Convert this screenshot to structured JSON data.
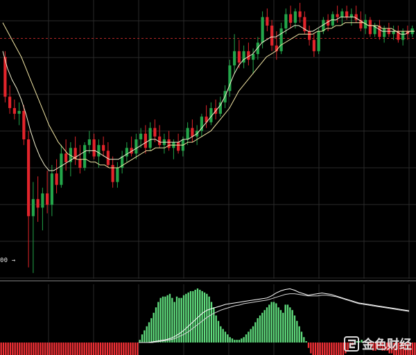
{
  "chart_data": {
    "type": "candlestick",
    "title": "",
    "xlabel": "",
    "ylabel": "",
    "grid": true,
    "price_panel": {
      "ylim": [
        0,
        100
      ],
      "reference_line": 92.5,
      "low_label": "00 →",
      "candles": [
        {
          "o": 86,
          "h": 88,
          "l": 70,
          "c": 72
        },
        {
          "o": 72,
          "h": 76,
          "l": 66,
          "c": 68
        },
        {
          "o": 68,
          "h": 71,
          "l": 64,
          "c": 66
        },
        {
          "o": 66,
          "h": 70,
          "l": 62,
          "c": 67
        },
        {
          "o": 67,
          "h": 69,
          "l": 55,
          "c": 57
        },
        {
          "o": 57,
          "h": 60,
          "l": 12,
          "c": 30
        },
        {
          "o": 30,
          "h": 42,
          "l": 10,
          "c": 36
        },
        {
          "o": 36,
          "h": 44,
          "l": 28,
          "c": 33
        },
        {
          "o": 33,
          "h": 40,
          "l": 25,
          "c": 38
        },
        {
          "o": 38,
          "h": 46,
          "l": 31,
          "c": 34
        },
        {
          "o": 34,
          "h": 48,
          "l": 30,
          "c": 45
        },
        {
          "o": 45,
          "h": 50,
          "l": 38,
          "c": 41
        },
        {
          "o": 41,
          "h": 55,
          "l": 40,
          "c": 52
        },
        {
          "o": 52,
          "h": 57,
          "l": 46,
          "c": 49
        },
        {
          "o": 49,
          "h": 56,
          "l": 44,
          "c": 54
        },
        {
          "o": 54,
          "h": 58,
          "l": 48,
          "c": 50
        },
        {
          "o": 50,
          "h": 55,
          "l": 45,
          "c": 47
        },
        {
          "o": 47,
          "h": 56,
          "l": 46,
          "c": 55
        },
        {
          "o": 55,
          "h": 60,
          "l": 52,
          "c": 57
        },
        {
          "o": 57,
          "h": 59,
          "l": 50,
          "c": 51
        },
        {
          "o": 51,
          "h": 57,
          "l": 47,
          "c": 55
        },
        {
          "o": 55,
          "h": 58,
          "l": 51,
          "c": 53
        },
        {
          "o": 53,
          "h": 56,
          "l": 47,
          "c": 48
        },
        {
          "o": 48,
          "h": 51,
          "l": 40,
          "c": 42
        },
        {
          "o": 42,
          "h": 49,
          "l": 40,
          "c": 47
        },
        {
          "o": 47,
          "h": 53,
          "l": 45,
          "c": 51
        },
        {
          "o": 51,
          "h": 56,
          "l": 49,
          "c": 54
        },
        {
          "o": 54,
          "h": 58,
          "l": 51,
          "c": 52
        },
        {
          "o": 52,
          "h": 59,
          "l": 50,
          "c": 57
        },
        {
          "o": 57,
          "h": 61,
          "l": 54,
          "c": 59
        },
        {
          "o": 59,
          "h": 62,
          "l": 52,
          "c": 54
        },
        {
          "o": 54,
          "h": 63,
          "l": 53,
          "c": 61
        },
        {
          "o": 61,
          "h": 64,
          "l": 56,
          "c": 58
        },
        {
          "o": 58,
          "h": 62,
          "l": 54,
          "c": 55
        },
        {
          "o": 55,
          "h": 59,
          "l": 52,
          "c": 57
        },
        {
          "o": 57,
          "h": 60,
          "l": 53,
          "c": 54
        },
        {
          "o": 54,
          "h": 57,
          "l": 50,
          "c": 56
        },
        {
          "o": 56,
          "h": 59,
          "l": 52,
          "c": 53
        },
        {
          "o": 53,
          "h": 58,
          "l": 51,
          "c": 57
        },
        {
          "o": 57,
          "h": 63,
          "l": 55,
          "c": 61
        },
        {
          "o": 61,
          "h": 64,
          "l": 56,
          "c": 58
        },
        {
          "o": 58,
          "h": 62,
          "l": 55,
          "c": 60
        },
        {
          "o": 60,
          "h": 66,
          "l": 58,
          "c": 65
        },
        {
          "o": 65,
          "h": 69,
          "l": 61,
          "c": 63
        },
        {
          "o": 63,
          "h": 70,
          "l": 62,
          "c": 68
        },
        {
          "o": 68,
          "h": 71,
          "l": 64,
          "c": 66
        },
        {
          "o": 66,
          "h": 72,
          "l": 65,
          "c": 70
        },
        {
          "o": 70,
          "h": 76,
          "l": 68,
          "c": 74
        },
        {
          "o": 74,
          "h": 85,
          "l": 72,
          "c": 83
        },
        {
          "o": 83,
          "h": 94,
          "l": 80,
          "c": 88
        },
        {
          "o": 88,
          "h": 92,
          "l": 82,
          "c": 84
        },
        {
          "o": 84,
          "h": 90,
          "l": 82,
          "c": 88
        },
        {
          "o": 88,
          "h": 91,
          "l": 83,
          "c": 85
        },
        {
          "o": 85,
          "h": 89,
          "l": 80,
          "c": 87
        },
        {
          "o": 87,
          "h": 93,
          "l": 85,
          "c": 91
        },
        {
          "o": 91,
          "h": 102,
          "l": 89,
          "c": 100
        },
        {
          "o": 100,
          "h": 103,
          "l": 95,
          "c": 97
        },
        {
          "o": 97,
          "h": 99,
          "l": 88,
          "c": 90
        },
        {
          "o": 90,
          "h": 95,
          "l": 85,
          "c": 88
        },
        {
          "o": 88,
          "h": 98,
          "l": 87,
          "c": 96
        },
        {
          "o": 96,
          "h": 103,
          "l": 94,
          "c": 101
        },
        {
          "o": 101,
          "h": 104,
          "l": 96,
          "c": 98
        },
        {
          "o": 98,
          "h": 103,
          "l": 96,
          "c": 102
        },
        {
          "o": 102,
          "h": 105,
          "l": 98,
          "c": 100
        },
        {
          "o": 100,
          "h": 102,
          "l": 94,
          "c": 95
        },
        {
          "o": 95,
          "h": 97,
          "l": 90,
          "c": 92
        },
        {
          "o": 92,
          "h": 94,
          "l": 86,
          "c": 88
        },
        {
          "o": 88,
          "h": 96,
          "l": 87,
          "c": 95
        },
        {
          "o": 95,
          "h": 100,
          "l": 94,
          "c": 99
        },
        {
          "o": 99,
          "h": 101,
          "l": 95,
          "c": 97
        },
        {
          "o": 97,
          "h": 102,
          "l": 96,
          "c": 101
        },
        {
          "o": 101,
          "h": 104,
          "l": 98,
          "c": 100
        },
        {
          "o": 100,
          "h": 103,
          "l": 97,
          "c": 102
        },
        {
          "o": 102,
          "h": 104,
          "l": 99,
          "c": 100
        },
        {
          "o": 100,
          "h": 103,
          "l": 97,
          "c": 101
        },
        {
          "o": 101,
          "h": 104,
          "l": 98,
          "c": 99
        },
        {
          "o": 99,
          "h": 102,
          "l": 95,
          "c": 96
        },
        {
          "o": 96,
          "h": 101,
          "l": 94,
          "c": 99
        },
        {
          "o": 99,
          "h": 100,
          "l": 93,
          "c": 94
        },
        {
          "o": 94,
          "h": 98,
          "l": 93,
          "c": 97
        },
        {
          "o": 97,
          "h": 99,
          "l": 92,
          "c": 93
        },
        {
          "o": 93,
          "h": 97,
          "l": 91,
          "c": 96
        },
        {
          "o": 96,
          "h": 98,
          "l": 93,
          "c": 94
        },
        {
          "o": 94,
          "h": 97,
          "l": 92,
          "c": 95
        },
        {
          "o": 95,
          "h": 97,
          "l": 91,
          "c": 92
        },
        {
          "o": 92,
          "h": 96,
          "l": 90,
          "c": 95
        },
        {
          "o": 95,
          "h": 97,
          "l": 92,
          "c": 94
        },
        {
          "o": 94,
          "h": 97,
          "l": 93,
          "c": 96
        }
      ],
      "moving_averages": [
        {
          "values": [
            88,
            82,
            78,
            75,
            71,
            66,
            60,
            55,
            51,
            48,
            46,
            46,
            47,
            48,
            49,
            50,
            51,
            52,
            53,
            53,
            53,
            52,
            51,
            50,
            50,
            50,
            51,
            52,
            53,
            54,
            55,
            56,
            57,
            57,
            56,
            56,
            56,
            56,
            56,
            57,
            57,
            58,
            59,
            61,
            63,
            65,
            67,
            69,
            72,
            76,
            80,
            83,
            85,
            86,
            87,
            89,
            91,
            92,
            93,
            93,
            94,
            95,
            96,
            97,
            97,
            96,
            95,
            95,
            96,
            97,
            98,
            99,
            99,
            100,
            100,
            100,
            100,
            99,
            98,
            97,
            97,
            96,
            95,
            95,
            95,
            95,
            94,
            94,
            95,
            95
          ]
        },
        {
          "values": [
            98,
            95,
            92,
            89,
            86,
            82,
            78,
            74,
            70,
            66,
            62,
            59,
            56,
            54,
            52,
            51,
            50,
            50,
            50,
            49,
            49,
            48,
            48,
            47,
            47,
            47,
            48,
            49,
            50,
            51,
            52,
            53,
            53,
            54,
            54,
            54,
            55,
            55,
            55,
            55,
            56,
            56,
            57,
            58,
            59,
            60,
            62,
            64,
            66,
            68,
            71,
            74,
            76,
            78,
            80,
            82,
            84,
            86,
            87,
            88,
            90,
            91,
            92,
            93,
            94,
            94,
            94,
            94,
            95,
            95,
            96,
            96,
            97,
            97,
            98,
            98,
            98,
            98,
            98,
            97,
            97,
            97,
            96,
            96,
            96,
            95,
            95,
            95,
            95,
            95
          ]
        }
      ]
    },
    "macd_panel": {
      "histogram": [
        -9,
        -9,
        -9,
        -9,
        -9,
        -9,
        -9,
        -9,
        -9,
        -9,
        -9,
        -9,
        -9,
        -9,
        -9,
        -9,
        -9,
        -9,
        -9,
        -9,
        -9,
        -9,
        -9,
        -9,
        -9,
        -9,
        -9,
        -9,
        -9,
        -9,
        -9,
        -9,
        -8,
        -8,
        -8,
        -8,
        -8,
        -8,
        -9,
        -9,
        -8,
        -8,
        -8,
        -8,
        -8,
        -8,
        -8,
        -8,
        -8,
        -8,
        -8,
        -8,
        -8,
        -8,
        -8,
        -8,
        -8,
        -8,
        -8,
        -8,
        2,
        6,
        9,
        12,
        15,
        18,
        22,
        26,
        30,
        33,
        34,
        34,
        35,
        36,
        33,
        30,
        34,
        33,
        33,
        35,
        36,
        37,
        38,
        38,
        39,
        40,
        39,
        38,
        37,
        36,
        34,
        30,
        26,
        20,
        16,
        12,
        10,
        8,
        6,
        4,
        3,
        2,
        2,
        2,
        3,
        4,
        6,
        8,
        10,
        12,
        15,
        18,
        20,
        22,
        24,
        26,
        28,
        30,
        30,
        29,
        26,
        24,
        22,
        28,
        28,
        26,
        24,
        20,
        16,
        12,
        8,
        4,
        1,
        -2,
        -4,
        -5,
        -6,
        -7,
        -7,
        -8,
        -7,
        -6,
        -6,
        -7,
        -8,
        -8,
        -7,
        -6,
        -5,
        -4,
        -3,
        -2,
        -1,
        0,
        1,
        1,
        2,
        1,
        0,
        -1,
        -2,
        -3,
        -3,
        -2,
        -2,
        -3,
        -3,
        -3,
        -4,
        -4,
        -5,
        -5,
        -6,
        -6,
        -7,
        -7,
        -7,
        -7,
        -6,
        -6
      ],
      "lines": [
        {
          "values": [
            0,
            0,
            0,
            1,
            2,
            3,
            4,
            6,
            9,
            13,
            18,
            24,
            30,
            36,
            42,
            46,
            48,
            50,
            52,
            54,
            55,
            56,
            57,
            58,
            59,
            60,
            61,
            62,
            63,
            66,
            70,
            73,
            75,
            76,
            74,
            71,
            69,
            67,
            68,
            69,
            70,
            69,
            68,
            66,
            64,
            62,
            60,
            58,
            56,
            55,
            54,
            53,
            52,
            51,
            50,
            49,
            48,
            47,
            46,
            45
          ]
        },
        {
          "values": [
            0,
            0,
            0,
            0,
            1,
            2,
            3,
            4,
            6,
            9,
            12,
            16,
            21,
            26,
            31,
            36,
            40,
            43,
            46,
            48,
            50,
            52,
            53,
            55,
            56,
            57,
            58,
            59,
            60,
            62,
            64,
            66,
            68,
            69,
            69,
            68,
            67,
            66,
            66,
            66,
            67,
            67,
            66,
            65,
            63,
            61,
            59,
            57,
            55,
            54,
            53,
            52,
            51,
            50,
            49,
            48,
            47,
            46,
            45,
            44
          ]
        }
      ]
    },
    "colors": {
      "up": "#23a64a",
      "down": "#e3242b",
      "hist_up": "#5fdc7d",
      "hist_down": "#ef2f35",
      "ma1": "#f4f1d0",
      "ma2": "#f4e8a6",
      "grid": "#2a2a2a",
      "ref": "#c02a2a"
    }
  },
  "watermark": {
    "icon": "jinse-logo-icon",
    "text": "金色财经"
  }
}
